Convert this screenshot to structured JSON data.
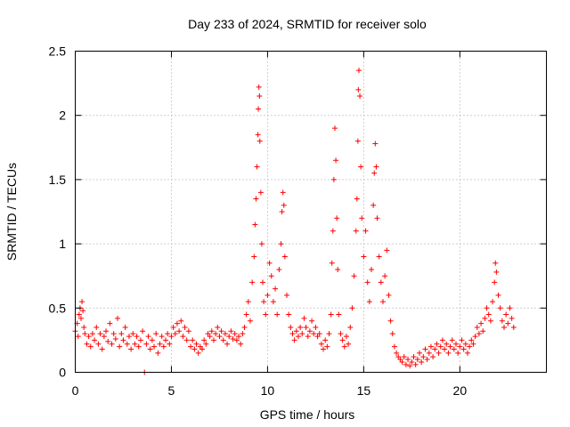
{
  "chart_data": {
    "type": "scatter",
    "title": "Day 233 of 2024, SRMTID for receiver solo",
    "xlabel": "GPS time / hours",
    "ylabel": "SRMTID / TECUs",
    "xlim": [
      0,
      24.5
    ],
    "ylim": [
      0,
      2.5
    ],
    "xticks": [
      0,
      5,
      10,
      15,
      20
    ],
    "xtick_labels": [
      "0",
      "5",
      "10",
      "15",
      "20"
    ],
    "yticks": [
      0,
      0.5,
      1,
      1.5,
      2,
      2.5
    ],
    "ytick_labels": [
      "0",
      "0.5",
      "1",
      "1.5",
      "2",
      "2.5"
    ],
    "grid": true,
    "marker": "+",
    "color": "#ff0000",
    "series": [
      {
        "name": "SRMTID",
        "points": [
          [
            0.0,
            0.32
          ],
          [
            0.1,
            0.38
          ],
          [
            0.15,
            0.28
          ],
          [
            0.2,
            0.45
          ],
          [
            0.25,
            0.5
          ],
          [
            0.3,
            0.42
          ],
          [
            0.35,
            0.55
          ],
          [
            0.4,
            0.48
          ],
          [
            0.45,
            0.35
          ],
          [
            0.5,
            0.3
          ],
          [
            0.6,
            0.22
          ],
          [
            0.7,
            0.28
          ],
          [
            0.8,
            0.2
          ],
          [
            0.9,
            0.3
          ],
          [
            1.0,
            0.25
          ],
          [
            1.1,
            0.35
          ],
          [
            1.2,
            0.22
          ],
          [
            1.3,
            0.3
          ],
          [
            1.4,
            0.18
          ],
          [
            1.5,
            0.28
          ],
          [
            1.6,
            0.32
          ],
          [
            1.7,
            0.24
          ],
          [
            1.8,
            0.38
          ],
          [
            1.9,
            0.22
          ],
          [
            2.0,
            0.3
          ],
          [
            2.1,
            0.26
          ],
          [
            2.2,
            0.42
          ],
          [
            2.3,
            0.2
          ],
          [
            2.4,
            0.3
          ],
          [
            2.5,
            0.25
          ],
          [
            2.6,
            0.35
          ],
          [
            2.7,
            0.22
          ],
          [
            2.8,
            0.28
          ],
          [
            2.9,
            0.18
          ],
          [
            3.0,
            0.3
          ],
          [
            3.1,
            0.22
          ],
          [
            3.2,
            0.28
          ],
          [
            3.3,
            0.2
          ],
          [
            3.4,
            0.25
          ],
          [
            3.5,
            0.32
          ],
          [
            3.6,
            0.0
          ],
          [
            3.7,
            0.22
          ],
          [
            3.8,
            0.28
          ],
          [
            3.9,
            0.18
          ],
          [
            4.0,
            0.25
          ],
          [
            4.1,
            0.2
          ],
          [
            4.2,
            0.3
          ],
          [
            4.3,
            0.15
          ],
          [
            4.4,
            0.22
          ],
          [
            4.5,
            0.28
          ],
          [
            4.6,
            0.2
          ],
          [
            4.7,
            0.25
          ],
          [
            4.8,
            0.3
          ],
          [
            4.9,
            0.22
          ],
          [
            5.0,
            0.28
          ],
          [
            5.1,
            0.35
          ],
          [
            5.2,
            0.3
          ],
          [
            5.3,
            0.38
          ],
          [
            5.4,
            0.32
          ],
          [
            5.5,
            0.4
          ],
          [
            5.6,
            0.28
          ],
          [
            5.7,
            0.35
          ],
          [
            5.8,
            0.25
          ],
          [
            5.9,
            0.32
          ],
          [
            6.0,
            0.2
          ],
          [
            6.1,
            0.25
          ],
          [
            6.2,
            0.18
          ],
          [
            6.3,
            0.22
          ],
          [
            6.4,
            0.15
          ],
          [
            6.5,
            0.2
          ],
          [
            6.6,
            0.18
          ],
          [
            6.7,
            0.25
          ],
          [
            6.8,
            0.22
          ],
          [
            6.9,
            0.3
          ],
          [
            7.0,
            0.28
          ],
          [
            7.1,
            0.32
          ],
          [
            7.2,
            0.25
          ],
          [
            7.3,
            0.3
          ],
          [
            7.4,
            0.35
          ],
          [
            7.5,
            0.28
          ],
          [
            7.6,
            0.32
          ],
          [
            7.7,
            0.25
          ],
          [
            7.8,
            0.3
          ],
          [
            7.9,
            0.22
          ],
          [
            8.0,
            0.28
          ],
          [
            8.1,
            0.32
          ],
          [
            8.2,
            0.26
          ],
          [
            8.3,
            0.3
          ],
          [
            8.4,
            0.25
          ],
          [
            8.5,
            0.28
          ],
          [
            8.6,
            0.22
          ],
          [
            8.7,
            0.3
          ],
          [
            8.8,
            0.35
          ],
          [
            8.9,
            0.45
          ],
          [
            9.0,
            0.55
          ],
          [
            9.1,
            0.4
          ],
          [
            9.2,
            0.7
          ],
          [
            9.3,
            0.9
          ],
          [
            9.35,
            1.15
          ],
          [
            9.4,
            1.35
          ],
          [
            9.45,
            1.6
          ],
          [
            9.5,
            1.85
          ],
          [
            9.52,
            2.05
          ],
          [
            9.55,
            2.22
          ],
          [
            9.58,
            2.15
          ],
          [
            9.6,
            1.8
          ],
          [
            9.65,
            1.4
          ],
          [
            9.7,
            1.0
          ],
          [
            9.75,
            0.7
          ],
          [
            9.8,
            0.55
          ],
          [
            9.9,
            0.45
          ],
          [
            10.0,
            0.6
          ],
          [
            10.1,
            0.85
          ],
          [
            10.2,
            0.75
          ],
          [
            10.3,
            0.55
          ],
          [
            10.4,
            0.65
          ],
          [
            10.5,
            0.45
          ],
          [
            10.6,
            0.8
          ],
          [
            10.7,
            1.0
          ],
          [
            10.75,
            1.25
          ],
          [
            10.8,
            1.4
          ],
          [
            10.85,
            1.3
          ],
          [
            10.9,
            0.9
          ],
          [
            11.0,
            0.6
          ],
          [
            11.1,
            0.45
          ],
          [
            11.2,
            0.35
          ],
          [
            11.3,
            0.3
          ],
          [
            11.4,
            0.25
          ],
          [
            11.5,
            0.32
          ],
          [
            11.6,
            0.28
          ],
          [
            11.7,
            0.35
          ],
          [
            11.8,
            0.3
          ],
          [
            11.9,
            0.42
          ],
          [
            12.0,
            0.35
          ],
          [
            12.1,
            0.28
          ],
          [
            12.2,
            0.32
          ],
          [
            12.3,
            0.4
          ],
          [
            12.4,
            0.3
          ],
          [
            12.5,
            0.35
          ],
          [
            12.6,
            0.28
          ],
          [
            12.7,
            0.3
          ],
          [
            12.8,
            0.22
          ],
          [
            12.9,
            0.18
          ],
          [
            13.0,
            0.25
          ],
          [
            13.1,
            0.2
          ],
          [
            13.2,
            0.3
          ],
          [
            13.3,
            0.45
          ],
          [
            13.35,
            0.85
          ],
          [
            13.4,
            1.1
          ],
          [
            13.45,
            1.5
          ],
          [
            13.5,
            1.9
          ],
          [
            13.55,
            1.65
          ],
          [
            13.6,
            1.2
          ],
          [
            13.65,
            0.8
          ],
          [
            13.7,
            0.45
          ],
          [
            13.8,
            0.3
          ],
          [
            13.9,
            0.25
          ],
          [
            14.0,
            0.2
          ],
          [
            14.1,
            0.28
          ],
          [
            14.2,
            0.22
          ],
          [
            14.3,
            0.35
          ],
          [
            14.4,
            0.5
          ],
          [
            14.5,
            0.75
          ],
          [
            14.6,
            1.1
          ],
          [
            14.65,
            1.35
          ],
          [
            14.7,
            1.8
          ],
          [
            14.72,
            2.2
          ],
          [
            14.75,
            2.35
          ],
          [
            14.8,
            2.15
          ],
          [
            14.85,
            1.6
          ],
          [
            14.9,
            1.2
          ],
          [
            15.0,
            0.9
          ],
          [
            15.1,
            1.1
          ],
          [
            15.2,
            0.7
          ],
          [
            15.3,
            0.55
          ],
          [
            15.4,
            0.8
          ],
          [
            15.5,
            1.3
          ],
          [
            15.55,
            1.55
          ],
          [
            15.6,
            1.78
          ],
          [
            15.65,
            1.6
          ],
          [
            15.7,
            1.2
          ],
          [
            15.8,
            0.9
          ],
          [
            15.9,
            0.7
          ],
          [
            16.0,
            0.55
          ],
          [
            16.1,
            0.75
          ],
          [
            16.2,
            0.95
          ],
          [
            16.3,
            0.6
          ],
          [
            16.4,
            0.4
          ],
          [
            16.5,
            0.3
          ],
          [
            16.6,
            0.2
          ],
          [
            16.7,
            0.15
          ],
          [
            16.8,
            0.12
          ],
          [
            16.9,
            0.1
          ],
          [
            17.0,
            0.08
          ],
          [
            17.1,
            0.12
          ],
          [
            17.2,
            0.06
          ],
          [
            17.3,
            0.1
          ],
          [
            17.4,
            0.05
          ],
          [
            17.5,
            0.08
          ],
          [
            17.6,
            0.12
          ],
          [
            17.7,
            0.06
          ],
          [
            17.8,
            0.1
          ],
          [
            17.9,
            0.15
          ],
          [
            18.0,
            0.08
          ],
          [
            18.1,
            0.12
          ],
          [
            18.2,
            0.18
          ],
          [
            18.3,
            0.1
          ],
          [
            18.4,
            0.15
          ],
          [
            18.5,
            0.2
          ],
          [
            18.6,
            0.12
          ],
          [
            18.7,
            0.18
          ],
          [
            18.8,
            0.22
          ],
          [
            18.9,
            0.15
          ],
          [
            19.0,
            0.2
          ],
          [
            19.1,
            0.25
          ],
          [
            19.2,
            0.18
          ],
          [
            19.3,
            0.22
          ],
          [
            19.4,
            0.15
          ],
          [
            19.5,
            0.2
          ],
          [
            19.6,
            0.25
          ],
          [
            19.7,
            0.18
          ],
          [
            19.8,
            0.22
          ],
          [
            19.9,
            0.15
          ],
          [
            20.0,
            0.2
          ],
          [
            20.1,
            0.25
          ],
          [
            20.2,
            0.18
          ],
          [
            20.3,
            0.22
          ],
          [
            20.4,
            0.15
          ],
          [
            20.5,
            0.2
          ],
          [
            20.6,
            0.25
          ],
          [
            20.7,
            0.22
          ],
          [
            20.8,
            0.28
          ],
          [
            20.9,
            0.35
          ],
          [
            21.0,
            0.3
          ],
          [
            21.1,
            0.38
          ],
          [
            21.2,
            0.32
          ],
          [
            21.3,
            0.42
          ],
          [
            21.4,
            0.5
          ],
          [
            21.5,
            0.45
          ],
          [
            21.6,
            0.4
          ],
          [
            21.7,
            0.55
          ],
          [
            21.8,
            0.7
          ],
          [
            21.85,
            0.85
          ],
          [
            21.9,
            0.78
          ],
          [
            22.0,
            0.6
          ],
          [
            22.1,
            0.5
          ],
          [
            22.2,
            0.4
          ],
          [
            22.3,
            0.35
          ],
          [
            22.4,
            0.45
          ],
          [
            22.5,
            0.38
          ],
          [
            22.6,
            0.5
          ],
          [
            22.7,
            0.42
          ],
          [
            22.8,
            0.35
          ]
        ]
      }
    ]
  }
}
